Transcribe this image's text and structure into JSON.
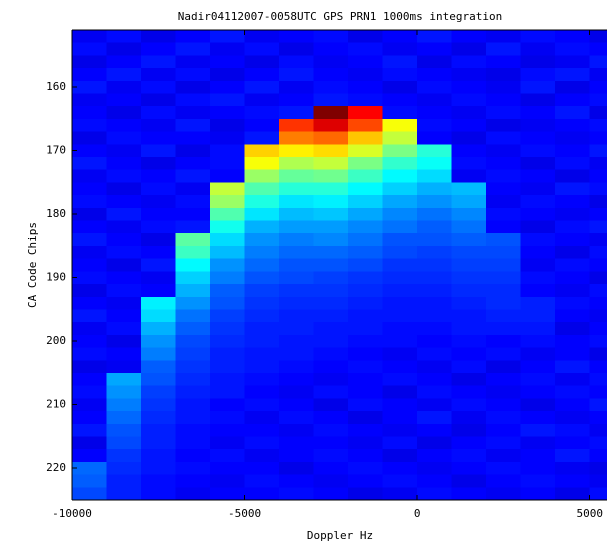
{
  "chart_data": {
    "type": "heatmap",
    "title": "Nadir04112007-0058UTC GPS PRN1 1000ms integration",
    "xlabel": "Doppler Hz",
    "ylabel": "CA Code Chips",
    "colormap": "jet",
    "y_inverted": true,
    "xlim": [
      -10000,
      5500
    ],
    "ylim": [
      151,
      225
    ],
    "xticks": [
      -10000,
      -5000,
      0,
      5000
    ],
    "yticks": [
      160,
      170,
      180,
      190,
      200,
      210,
      220
    ],
    "xbins": [
      -10000,
      -9000,
      -8000,
      -7000,
      -6000,
      -5000,
      -4000,
      -3000,
      -2000,
      -1000,
      0,
      1000,
      2000,
      3000,
      4000,
      5000,
      5500
    ],
    "ybins": [
      151,
      153,
      155,
      157,
      159,
      161,
      163,
      165,
      167,
      169,
      171,
      173,
      175,
      177,
      179,
      181,
      183,
      185,
      187,
      189,
      191,
      193,
      195,
      197,
      199,
      201,
      203,
      205,
      207,
      209,
      211,
      213,
      215,
      217,
      219,
      221,
      223,
      225
    ],
    "values": [
      [
        11,
        13,
        10,
        12,
        14,
        11,
        12,
        13,
        10,
        12,
        14,
        12,
        11,
        13,
        12,
        10
      ],
      [
        13,
        10,
        12,
        14,
        11,
        13,
        10,
        12,
        13,
        11,
        12,
        10,
        14,
        11,
        13,
        12
      ],
      [
        10,
        12,
        14,
        11,
        12,
        10,
        13,
        11,
        12,
        14,
        10,
        13,
        12,
        10,
        11,
        14
      ],
      [
        12,
        14,
        11,
        13,
        10,
        12,
        14,
        12,
        11,
        13,
        12,
        11,
        10,
        13,
        14,
        11
      ],
      [
        14,
        11,
        13,
        10,
        12,
        14,
        11,
        13,
        12,
        10,
        13,
        12,
        11,
        14,
        10,
        12
      ],
      [
        11,
        12,
        10,
        13,
        14,
        11,
        12,
        14,
        13,
        12,
        11,
        13,
        12,
        10,
        12,
        13
      ],
      [
        12,
        10,
        13,
        11,
        12,
        13,
        14,
        97,
        85,
        13,
        12,
        11,
        13,
        12,
        14,
        10
      ],
      [
        13,
        12,
        11,
        14,
        10,
        12,
        80,
        88,
        78,
        60,
        13,
        12,
        10,
        11,
        12,
        13
      ],
      [
        10,
        13,
        12,
        12,
        11,
        14,
        73,
        75,
        66,
        55,
        12,
        10,
        13,
        12,
        11,
        12
      ],
      [
        12,
        11,
        14,
        10,
        13,
        65,
        62,
        64,
        57,
        48,
        40,
        12,
        11,
        13,
        12,
        14
      ],
      [
        14,
        12,
        10,
        12,
        13,
        60,
        53,
        55,
        48,
        41,
        37,
        13,
        12,
        10,
        13,
        11
      ],
      [
        11,
        13,
        12,
        14,
        12,
        51,
        46,
        47,
        42,
        36,
        33,
        11,
        13,
        12,
        10,
        12
      ],
      [
        12,
        10,
        13,
        11,
        55,
        44,
        40,
        40,
        36,
        32,
        29,
        30,
        12,
        11,
        14,
        13
      ],
      [
        13,
        12,
        11,
        13,
        51,
        39,
        34,
        35,
        32,
        28,
        26,
        28,
        11,
        13,
        12,
        10
      ],
      [
        10,
        14,
        12,
        12,
        44,
        34,
        30,
        31,
        28,
        25,
        23,
        25,
        13,
        12,
        11,
        12
      ],
      [
        12,
        11,
        13,
        14,
        38,
        29,
        27,
        27,
        25,
        23,
        21,
        23,
        12,
        10,
        13,
        14
      ],
      [
        14,
        12,
        10,
        45,
        33,
        26,
        24,
        25,
        23,
        20,
        20,
        21,
        20,
        13,
        12,
        11
      ],
      [
        11,
        13,
        12,
        42,
        30,
        24,
        22,
        22,
        21,
        19,
        18,
        19,
        19,
        12,
        10,
        13
      ],
      [
        12,
        10,
        14,
        36,
        26,
        22,
        20,
        20,
        19,
        17,
        17,
        18,
        18,
        11,
        13,
        12
      ],
      [
        13,
        12,
        11,
        32,
        24,
        20,
        19,
        18,
        17,
        16,
        16,
        17,
        17,
        13,
        12,
        10
      ],
      [
        10,
        13,
        12,
        29,
        21,
        18,
        17,
        17,
        16,
        15,
        15,
        16,
        16,
        12,
        11,
        13
      ],
      [
        12,
        11,
        35,
        26,
        20,
        17,
        16,
        16,
        15,
        14,
        14,
        15,
        16,
        15,
        13,
        12
      ],
      [
        14,
        12,
        33,
        23,
        18,
        16,
        15,
        15,
        14,
        14,
        14,
        14,
        15,
        15,
        12,
        11
      ],
      [
        11,
        13,
        29,
        21,
        17,
        15,
        15,
        14,
        14,
        13,
        13,
        14,
        14,
        14,
        10,
        12
      ],
      [
        12,
        10,
        26,
        19,
        16,
        15,
        14,
        14,
        13,
        13,
        12,
        13,
        12,
        13,
        12,
        13
      ],
      [
        13,
        12,
        24,
        18,
        15,
        14,
        14,
        13,
        12,
        11,
        13,
        12,
        13,
        11,
        12,
        10
      ],
      [
        10,
        11,
        21,
        17,
        15,
        14,
        13,
        12,
        13,
        12,
        11,
        13,
        10,
        12,
        14,
        12
      ],
      [
        12,
        28,
        20,
        16,
        14,
        13,
        12,
        11,
        12,
        13,
        12,
        10,
        12,
        13,
        11,
        13
      ],
      [
        13,
        26,
        18,
        15,
        14,
        12,
        11,
        13,
        12,
        10,
        13,
        12,
        11,
        12,
        13,
        12
      ],
      [
        11,
        24,
        17,
        14,
        12,
        13,
        12,
        10,
        13,
        12,
        11,
        13,
        12,
        10,
        12,
        14
      ],
      [
        12,
        22,
        16,
        14,
        13,
        11,
        13,
        12,
        10,
        12,
        14,
        11,
        13,
        12,
        11,
        12
      ],
      [
        14,
        20,
        15,
        13,
        12,
        12,
        11,
        13,
        12,
        11,
        12,
        10,
        12,
        14,
        13,
        11
      ],
      [
        10,
        19,
        15,
        13,
        11,
        13,
        12,
        12,
        11,
        13,
        10,
        12,
        13,
        11,
        12,
        13
      ],
      [
        12,
        17,
        14,
        12,
        13,
        11,
        12,
        13,
        12,
        10,
        12,
        13,
        11,
        12,
        14,
        12
      ],
      [
        22,
        16,
        14,
        13,
        12,
        12,
        10,
        12,
        13,
        12,
        11,
        12,
        13,
        12,
        11,
        10
      ],
      [
        21,
        15,
        13,
        12,
        11,
        13,
        12,
        11,
        12,
        13,
        12,
        10,
        12,
        13,
        12,
        11
      ],
      [
        19,
        15,
        13,
        11,
        12,
        12,
        13,
        12,
        10,
        11,
        13,
        12,
        11,
        12,
        10,
        13
      ]
    ]
  }
}
